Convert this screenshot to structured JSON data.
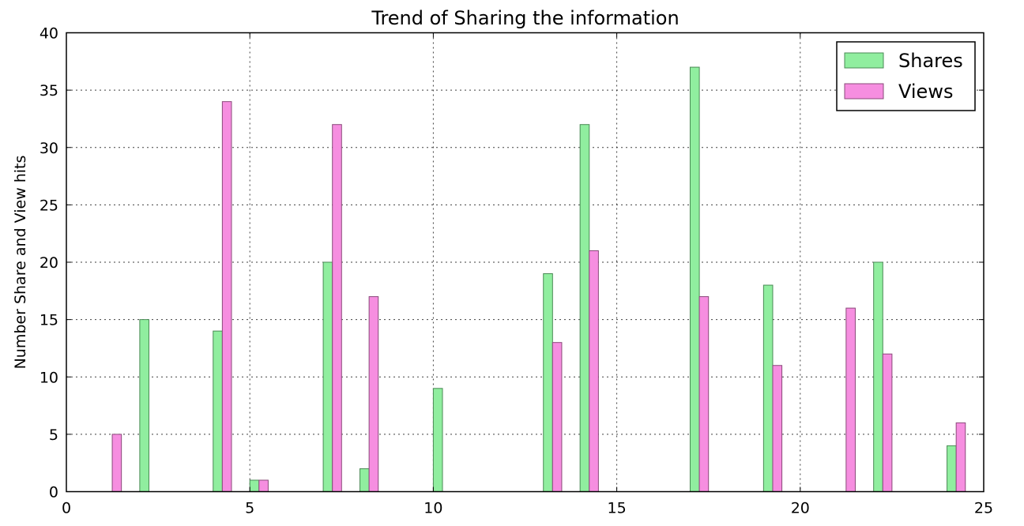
{
  "chart_data": {
    "type": "bar",
    "title": "Trend of Sharing the information",
    "xlabel": "",
    "ylabel": "Number Share and View hits",
    "xlim": [
      0,
      25
    ],
    "ylim": [
      0,
      40
    ],
    "xticks": [
      0,
      5,
      10,
      15,
      20,
      25
    ],
    "yticks": [
      0,
      5,
      10,
      15,
      20,
      25,
      30,
      35,
      40
    ],
    "grid": true,
    "legend_position": "top-right",
    "bar_width": 0.25,
    "x": [
      1,
      2,
      3,
      4,
      5,
      6,
      7,
      8,
      9,
      10,
      11,
      12,
      13,
      14,
      15,
      16,
      17,
      18,
      19,
      20,
      21,
      22,
      23,
      24
    ],
    "series": [
      {
        "name": "Shares",
        "color": "#90ee9f",
        "edge_color": "#4a8a55",
        "values": [
          0,
          15,
          0,
          14,
          1,
          0,
          20,
          2,
          0,
          9,
          0,
          0,
          19,
          32,
          0,
          0,
          37,
          0,
          18,
          0,
          0,
          20,
          0,
          4
        ]
      },
      {
        "name": "Views",
        "color": "#f68ee0",
        "edge_color": "#8a4a7a",
        "values": [
          5,
          0,
          0,
          34,
          1,
          0,
          32,
          17,
          0,
          0,
          0,
          0,
          13,
          21,
          0,
          0,
          17,
          0,
          11,
          0,
          16,
          12,
          0,
          6
        ]
      }
    ]
  }
}
